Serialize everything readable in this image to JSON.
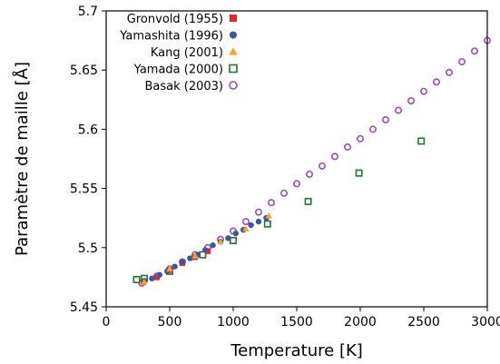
{
  "chart_data": {
    "type": "scatter",
    "title": "",
    "xlabel": "Temperature [K]",
    "ylabel": "Paramètre de maille [Å]",
    "xlim": [
      0,
      3000
    ],
    "ylim": [
      5.45,
      5.7
    ],
    "xticks": [
      0,
      500,
      1000,
      1500,
      2000,
      2500,
      3000
    ],
    "xtick_labels": [
      "0",
      "500",
      "1000",
      "1500",
      "2000",
      "2500",
      "3000"
    ],
    "yticks": [
      5.45,
      5.5,
      5.55,
      5.6,
      5.65,
      5.7
    ],
    "ytick_labels": [
      "5.45",
      "5.5",
      "5.55",
      "5.6",
      "5.65",
      "5.7"
    ],
    "grid": false,
    "legend_position": "top-left",
    "series": [
      {
        "name": "Gronvold (1955)",
        "marker": "square",
        "color": "#e8232a",
        "filled": true,
        "points": [
          {
            "x": 295,
            "y": 5.471
          },
          {
            "x": 400,
            "y": 5.475
          },
          {
            "x": 500,
            "y": 5.481
          },
          {
            "x": 600,
            "y": 5.487
          },
          {
            "x": 700,
            "y": 5.492
          },
          {
            "x": 800,
            "y": 5.497
          }
        ]
      },
      {
        "name": "Yamashita (1996)",
        "marker": "circle",
        "color": "#3b56a6",
        "filled": true,
        "points": [
          {
            "x": 300,
            "y": 5.472
          },
          {
            "x": 360,
            "y": 5.474
          },
          {
            "x": 420,
            "y": 5.477
          },
          {
            "x": 480,
            "y": 5.48
          },
          {
            "x": 540,
            "y": 5.484
          },
          {
            "x": 600,
            "y": 5.488
          },
          {
            "x": 660,
            "y": 5.491
          },
          {
            "x": 720,
            "y": 5.494
          },
          {
            "x": 780,
            "y": 5.498
          },
          {
            "x": 840,
            "y": 5.502
          },
          {
            "x": 900,
            "y": 5.505
          },
          {
            "x": 960,
            "y": 5.508
          },
          {
            "x": 1020,
            "y": 5.512
          },
          {
            "x": 1080,
            "y": 5.515
          },
          {
            "x": 1140,
            "y": 5.519
          },
          {
            "x": 1200,
            "y": 5.522
          },
          {
            "x": 1260,
            "y": 5.525
          }
        ]
      },
      {
        "name": "Kang (2001)",
        "marker": "triangle",
        "color": "#f5a623",
        "filled": true,
        "points": [
          {
            "x": 300,
            "y": 5.471
          },
          {
            "x": 500,
            "y": 5.482
          },
          {
            "x": 700,
            "y": 5.493
          },
          {
            "x": 900,
            "y": 5.505
          },
          {
            "x": 1100,
            "y": 5.516
          },
          {
            "x": 1280,
            "y": 5.527
          }
        ]
      },
      {
        "name": "Yamada (2000)",
        "marker": "square",
        "color": "#1e7a2e",
        "filled": false,
        "points": [
          {
            "x": 240,
            "y": 5.473
          },
          {
            "x": 300,
            "y": 5.474
          },
          {
            "x": 500,
            "y": 5.48
          },
          {
            "x": 760,
            "y": 5.494
          },
          {
            "x": 1000,
            "y": 5.506
          },
          {
            "x": 1270,
            "y": 5.52
          },
          {
            "x": 1590,
            "y": 5.539
          },
          {
            "x": 1990,
            "y": 5.563
          },
          {
            "x": 2480,
            "y": 5.59
          }
        ]
      },
      {
        "name": "Basak (2003)",
        "marker": "circle",
        "color": "#9b4fb0",
        "filled": false,
        "points": [
          {
            "x": 280,
            "y": 5.47
          },
          {
            "x": 400,
            "y": 5.476
          },
          {
            "x": 500,
            "y": 5.482
          },
          {
            "x": 600,
            "y": 5.488
          },
          {
            "x": 700,
            "y": 5.494
          },
          {
            "x": 800,
            "y": 5.5
          },
          {
            "x": 900,
            "y": 5.507
          },
          {
            "x": 1000,
            "y": 5.514
          },
          {
            "x": 1100,
            "y": 5.522
          },
          {
            "x": 1200,
            "y": 5.53
          },
          {
            "x": 1300,
            "y": 5.538
          },
          {
            "x": 1400,
            "y": 5.546
          },
          {
            "x": 1500,
            "y": 5.554
          },
          {
            "x": 1600,
            "y": 5.562
          },
          {
            "x": 1700,
            "y": 5.569
          },
          {
            "x": 1800,
            "y": 5.577
          },
          {
            "x": 1900,
            "y": 5.585
          },
          {
            "x": 2000,
            "y": 5.592
          },
          {
            "x": 2100,
            "y": 5.6
          },
          {
            "x": 2200,
            "y": 5.608
          },
          {
            "x": 2300,
            "y": 5.616
          },
          {
            "x": 2400,
            "y": 5.624
          },
          {
            "x": 2500,
            "y": 5.632
          },
          {
            "x": 2600,
            "y": 5.64
          },
          {
            "x": 2700,
            "y": 5.648
          },
          {
            "x": 2800,
            "y": 5.657
          },
          {
            "x": 2900,
            "y": 5.666
          },
          {
            "x": 3000,
            "y": 5.675
          }
        ]
      }
    ]
  }
}
